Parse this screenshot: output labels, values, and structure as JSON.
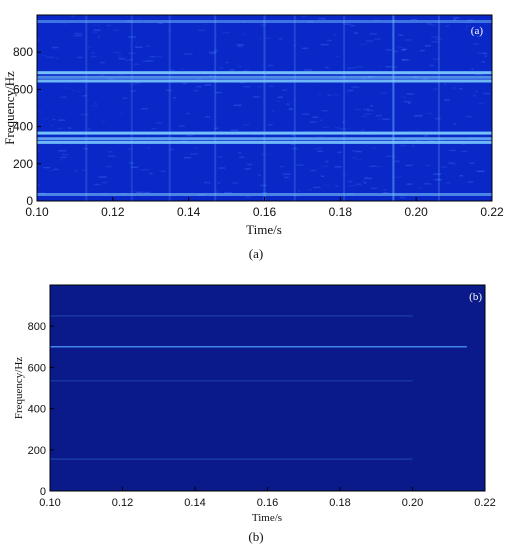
{
  "chart_data": [
    {
      "type": "heatmap",
      "panel_tag": "(a)",
      "caption": "(a)",
      "xlabel": "Time/s",
      "ylabel": "Frequency/Hz",
      "xlim": [
        0.1,
        0.22
      ],
      "ylim": [
        0,
        1000
      ],
      "xticks": [
        "0.10",
        "0.12",
        "0.14",
        "0.16",
        "0.18",
        "0.20",
        "0.22"
      ],
      "yticks": [
        "0",
        "200",
        "400",
        "600",
        "800"
      ],
      "background_color": "#0a28c8",
      "bands": [
        {
          "frequency": 35,
          "intensity": 0.55
        },
        {
          "frequency": 315,
          "intensity": 0.85
        },
        {
          "frequency": 335,
          "intensity": 0.7
        },
        {
          "frequency": 365,
          "intensity": 0.9
        },
        {
          "frequency": 645,
          "intensity": 0.85
        },
        {
          "frequency": 665,
          "intensity": 0.6
        },
        {
          "frequency": 690,
          "intensity": 0.9
        },
        {
          "frequency": 965,
          "intensity": 0.45
        }
      ],
      "time_markers": [
        {
          "time": 0.113,
          "intensity": 0.35
        },
        {
          "time": 0.125,
          "intensity": 0.3
        },
        {
          "time": 0.135,
          "intensity": 0.35
        },
        {
          "time": 0.147,
          "intensity": 0.4
        },
        {
          "time": 0.16,
          "intensity": 0.45
        },
        {
          "time": 0.168,
          "intensity": 0.35
        },
        {
          "time": 0.181,
          "intensity": 0.35
        },
        {
          "time": 0.194,
          "intensity": 0.85
        },
        {
          "time": 0.206,
          "intensity": 0.4
        }
      ]
    },
    {
      "type": "heatmap",
      "panel_tag": "(b)",
      "caption": "(b)",
      "xlabel": "Time/s",
      "ylabel": "Frequency/Hz",
      "xlim": [
        0.1,
        0.22
      ],
      "ylim": [
        0,
        1000
      ],
      "xticks": [
        "0.10",
        "0.12",
        "0.14",
        "0.16",
        "0.18",
        "0.20",
        "0.22"
      ],
      "yticks": [
        "0",
        "200",
        "400",
        "600",
        "800"
      ],
      "background_color": "#0a1a8a",
      "bands": [
        {
          "frequency": 155,
          "intensity": 0.3,
          "t_end": 0.2
        },
        {
          "frequency": 535,
          "intensity": 0.25,
          "t_end": 0.2
        },
        {
          "frequency": 700,
          "intensity": 1.0,
          "t_end": 0.215
        },
        {
          "frequency": 850,
          "intensity": 0.28,
          "t_end": 0.2
        }
      ],
      "time_markers": []
    }
  ]
}
